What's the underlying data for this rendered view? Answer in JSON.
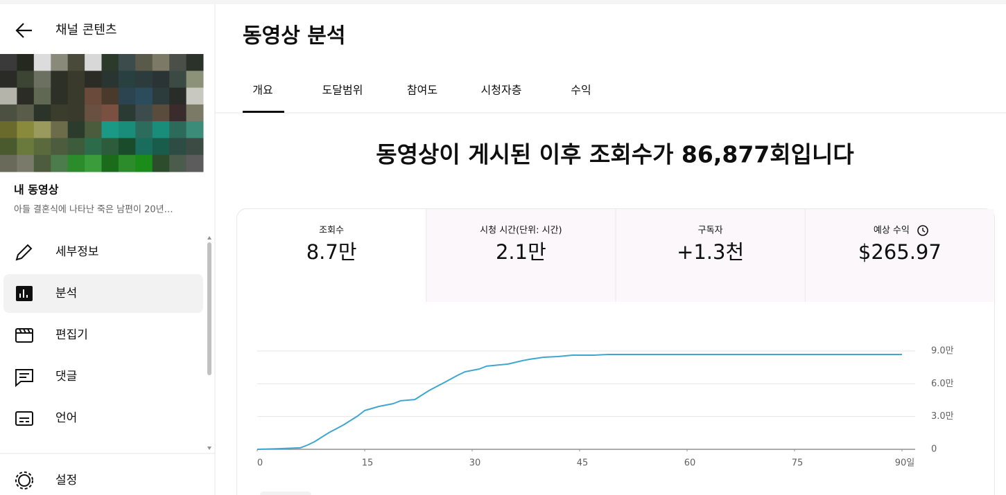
{
  "sidebar": {
    "back_label": "채널 콘텐츠",
    "video_heading": "내 동영상",
    "video_title": "아들 결혼식에 나타난 죽은 남편이 20년…",
    "nav": [
      "세부정보",
      "분석",
      "편집기",
      "댓글",
      "언어"
    ],
    "settings": "설정"
  },
  "header": {
    "title": "동영상 분석"
  },
  "tabs": [
    "개요",
    "도달범위",
    "참여도",
    "시청자층",
    "수익"
  ],
  "headline": "동영상이 게시된 이후 조회수가 86,877회입니다",
  "metrics": [
    {
      "label": "조회수",
      "value": "8.7만"
    },
    {
      "label": "시청 시간(단위: 시간)",
      "value": "2.1만"
    },
    {
      "label": "구독자",
      "value": "+1.3천"
    },
    {
      "label": "예상 수익",
      "value": "$265.97"
    }
  ],
  "chart_data": {
    "type": "line",
    "x": [
      0,
      3,
      6,
      7,
      8,
      10,
      12,
      14,
      15,
      17,
      19,
      20,
      22,
      24,
      26,
      28,
      29,
      31,
      32,
      35,
      37,
      38,
      40,
      42,
      44,
      47,
      49,
      60,
      75,
      90
    ],
    "series": [
      {
        "color": "#3ea6d1",
        "values": [
          0,
          600,
          1300,
          3800,
          7000,
          15200,
          22200,
          30400,
          35500,
          39300,
          41800,
          44400,
          45600,
          53900,
          60800,
          67800,
          71000,
          73500,
          76100,
          78000,
          81100,
          82400,
          84300,
          84900,
          86200,
          86200,
          86800,
          86800,
          86800,
          86800
        ]
      }
    ],
    "xlim": [
      0,
      90
    ],
    "ylim": [
      0,
      90000
    ],
    "xticks": [
      0,
      15,
      30,
      45,
      60,
      75,
      {
        "value": 90,
        "label": "90일"
      }
    ],
    "yticks": [
      0,
      {
        "value": 30000,
        "label": "3.0만"
      },
      {
        "value": 60000,
        "label": "6.0만"
      },
      {
        "value": 90000,
        "label": "9.0만"
      }
    ],
    "grid": true
  }
}
